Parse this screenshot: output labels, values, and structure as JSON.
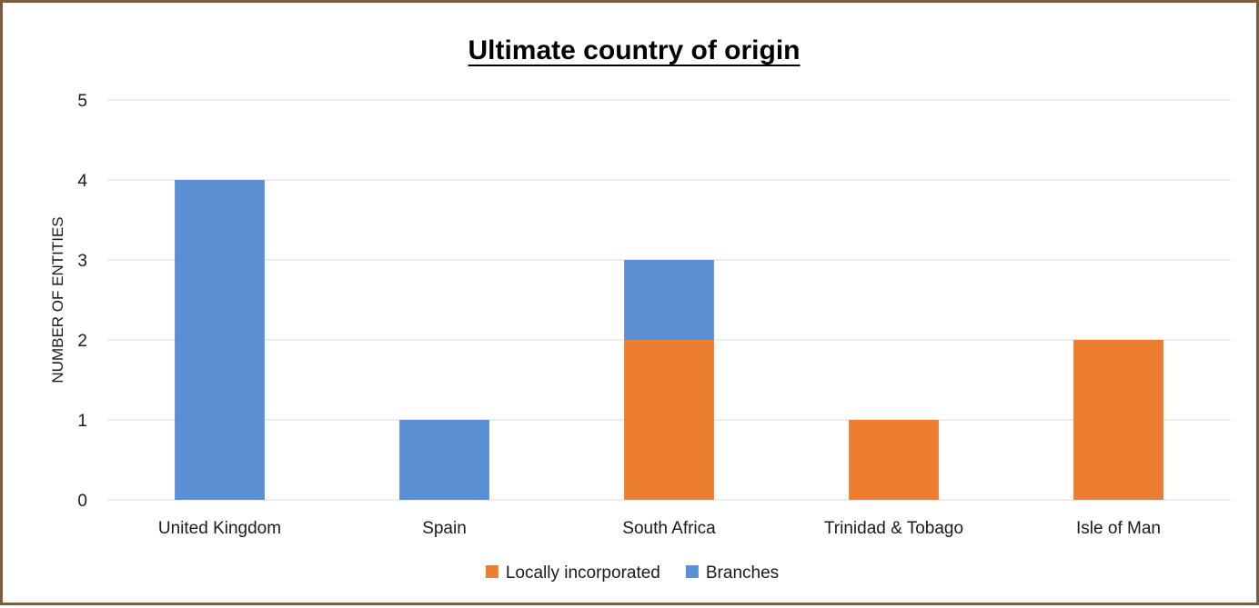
{
  "chart_data": {
    "type": "bar",
    "stacked": true,
    "title": "Ultimate country of origin",
    "xlabel": "",
    "ylabel": "NUMBER OF ENTITIES",
    "categories": [
      "United Kingdom",
      "Spain",
      "South Africa",
      "Trinidad & Tobago",
      "Isle of Man"
    ],
    "series": [
      {
        "name": "Locally incorporated",
        "values": [
          0,
          0,
          2,
          1,
          2
        ],
        "color": "#ed7d31"
      },
      {
        "name": "Branches",
        "values": [
          4,
          1,
          1,
          0,
          0
        ],
        "color": "#5b8fd4"
      }
    ],
    "ylim": [
      0,
      5
    ],
    "yticks": [
      "0",
      "1",
      "2",
      "3",
      "4",
      "5"
    ],
    "grid": true,
    "legend_position": "bottom"
  }
}
